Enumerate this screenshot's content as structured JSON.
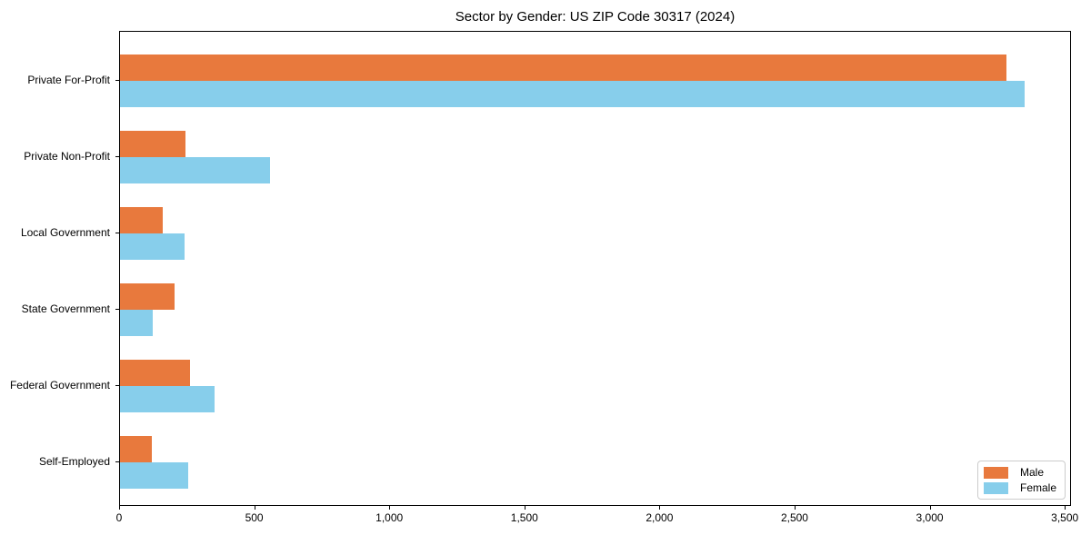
{
  "chart_data": {
    "type": "bar",
    "orientation": "horizontal",
    "title": "Sector by Gender: US ZIP Code 30317 (2024)",
    "categories": [
      "Private For-Profit",
      "Private Non-Profit",
      "Local Government",
      "State Government",
      "Federal Government",
      "Self-Employed"
    ],
    "series": [
      {
        "name": "Male",
        "color": "#e8793d",
        "values": [
          3281,
          242,
          158,
          202,
          258,
          119
        ]
      },
      {
        "name": "Female",
        "color": "#87ceeb",
        "values": [
          3348,
          555,
          239,
          121,
          349,
          253
        ]
      }
    ],
    "xlabel": "",
    "ylabel": "",
    "xlim": [
      0,
      3523
    ],
    "x_ticks": [
      0,
      500,
      1000,
      1500,
      2000,
      2500,
      3000,
      3500
    ],
    "x_tick_labels": [
      "0",
      "500",
      "1,000",
      "1,500",
      "2,000",
      "2,500",
      "3,000",
      "3,500"
    ],
    "legend_position": "lower right",
    "grid": false
  }
}
